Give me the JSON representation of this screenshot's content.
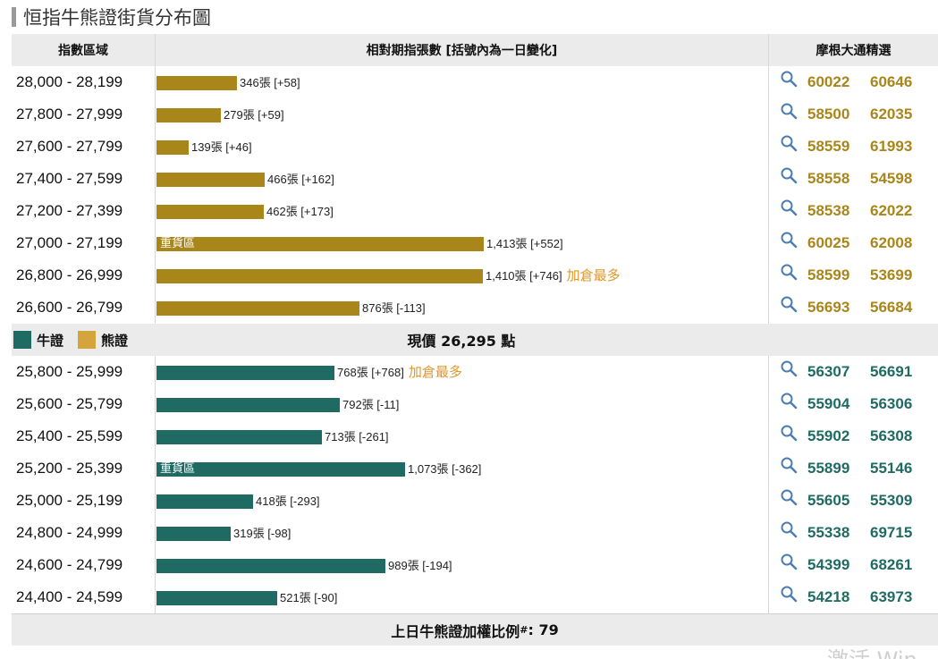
{
  "page_title": "恒指牛熊證街貨分布圖",
  "headers": {
    "range": "指數區域",
    "count": "相對期指張數 [括號內為一日變化]",
    "selection": "摩根大通精選"
  },
  "colors": {
    "bear": "#a8861a",
    "bull": "#1f6b64",
    "bear_legend": "#d4a53c",
    "highlight": "#e0962a"
  },
  "bar_max_contracts": 1413,
  "heavy_label": "重貨區",
  "bear_rows": [
    {
      "range": "28,000 - 28,199",
      "contracts": 346,
      "label": "346張 [+58]",
      "heavy": false,
      "note": "",
      "codes": [
        "60022",
        "60646"
      ]
    },
    {
      "range": "27,800 - 27,999",
      "contracts": 279,
      "label": "279張 [+59]",
      "heavy": false,
      "note": "",
      "codes": [
        "58500",
        "62035"
      ]
    },
    {
      "range": "27,600 - 27,799",
      "contracts": 139,
      "label": "139張 [+46]",
      "heavy": false,
      "note": "",
      "codes": [
        "58559",
        "61993"
      ]
    },
    {
      "range": "27,400 - 27,599",
      "contracts": 466,
      "label": "466張 [+162]",
      "heavy": false,
      "note": "",
      "codes": [
        "58558",
        "54598"
      ]
    },
    {
      "range": "27,200 - 27,399",
      "contracts": 462,
      "label": "462張 [+173]",
      "heavy": false,
      "note": "",
      "codes": [
        "58538",
        "62022"
      ]
    },
    {
      "range": "27,000 - 27,199",
      "contracts": 1413,
      "label": "1,413張 [+552]",
      "heavy": true,
      "note": "",
      "codes": [
        "60025",
        "62008"
      ]
    },
    {
      "range": "26,800 - 26,999",
      "contracts": 1410,
      "label": "1,410張 [+746]",
      "heavy": false,
      "note": "加倉最多",
      "codes": [
        "58599",
        "53699"
      ]
    },
    {
      "range": "26,600 - 26,799",
      "contracts": 876,
      "label": "876張 [-113]",
      "heavy": false,
      "note": "",
      "codes": [
        "56693",
        "56684"
      ]
    }
  ],
  "legend": {
    "bull": "牛證",
    "bear": "熊證"
  },
  "current_price": "現價 26,295 點",
  "bull_rows": [
    {
      "range": "25,800 - 25,999",
      "contracts": 768,
      "label": "768張 [+768]",
      "heavy": false,
      "note": "加倉最多",
      "codes": [
        "56307",
        "56691"
      ]
    },
    {
      "range": "25,600 - 25,799",
      "contracts": 792,
      "label": "792張 [-11]",
      "heavy": false,
      "note": "",
      "codes": [
        "55904",
        "56306"
      ]
    },
    {
      "range": "25,400 - 25,599",
      "contracts": 713,
      "label": "713張 [-261]",
      "heavy": false,
      "note": "",
      "codes": [
        "55902",
        "56308"
      ]
    },
    {
      "range": "25,200 - 25,399",
      "contracts": 1073,
      "label": "1,073張 [-362]",
      "heavy": true,
      "note": "",
      "codes": [
        "55899",
        "55146"
      ]
    },
    {
      "range": "25,000 - 25,199",
      "contracts": 418,
      "label": "418張 [-293]",
      "heavy": false,
      "note": "",
      "codes": [
        "55605",
        "55309"
      ]
    },
    {
      "range": "24,800 - 24,999",
      "contracts": 319,
      "label": "319張 [-98]",
      "heavy": false,
      "note": "",
      "codes": [
        "55338",
        "69715"
      ]
    },
    {
      "range": "24,600 - 24,799",
      "contracts": 989,
      "label": "989張 [-194]",
      "heavy": false,
      "note": "",
      "codes": [
        "54399",
        "68261"
      ]
    },
    {
      "range": "24,400 - 24,599",
      "contracts": 521,
      "label": "521張 [-90]",
      "heavy": false,
      "note": "",
      "codes": [
        "54218",
        "63973"
      ]
    }
  ],
  "footer": {
    "text": "上日牛熊證加權比例",
    "mark": "#",
    "value": ": 79"
  },
  "watermark": "激活 Win"
}
